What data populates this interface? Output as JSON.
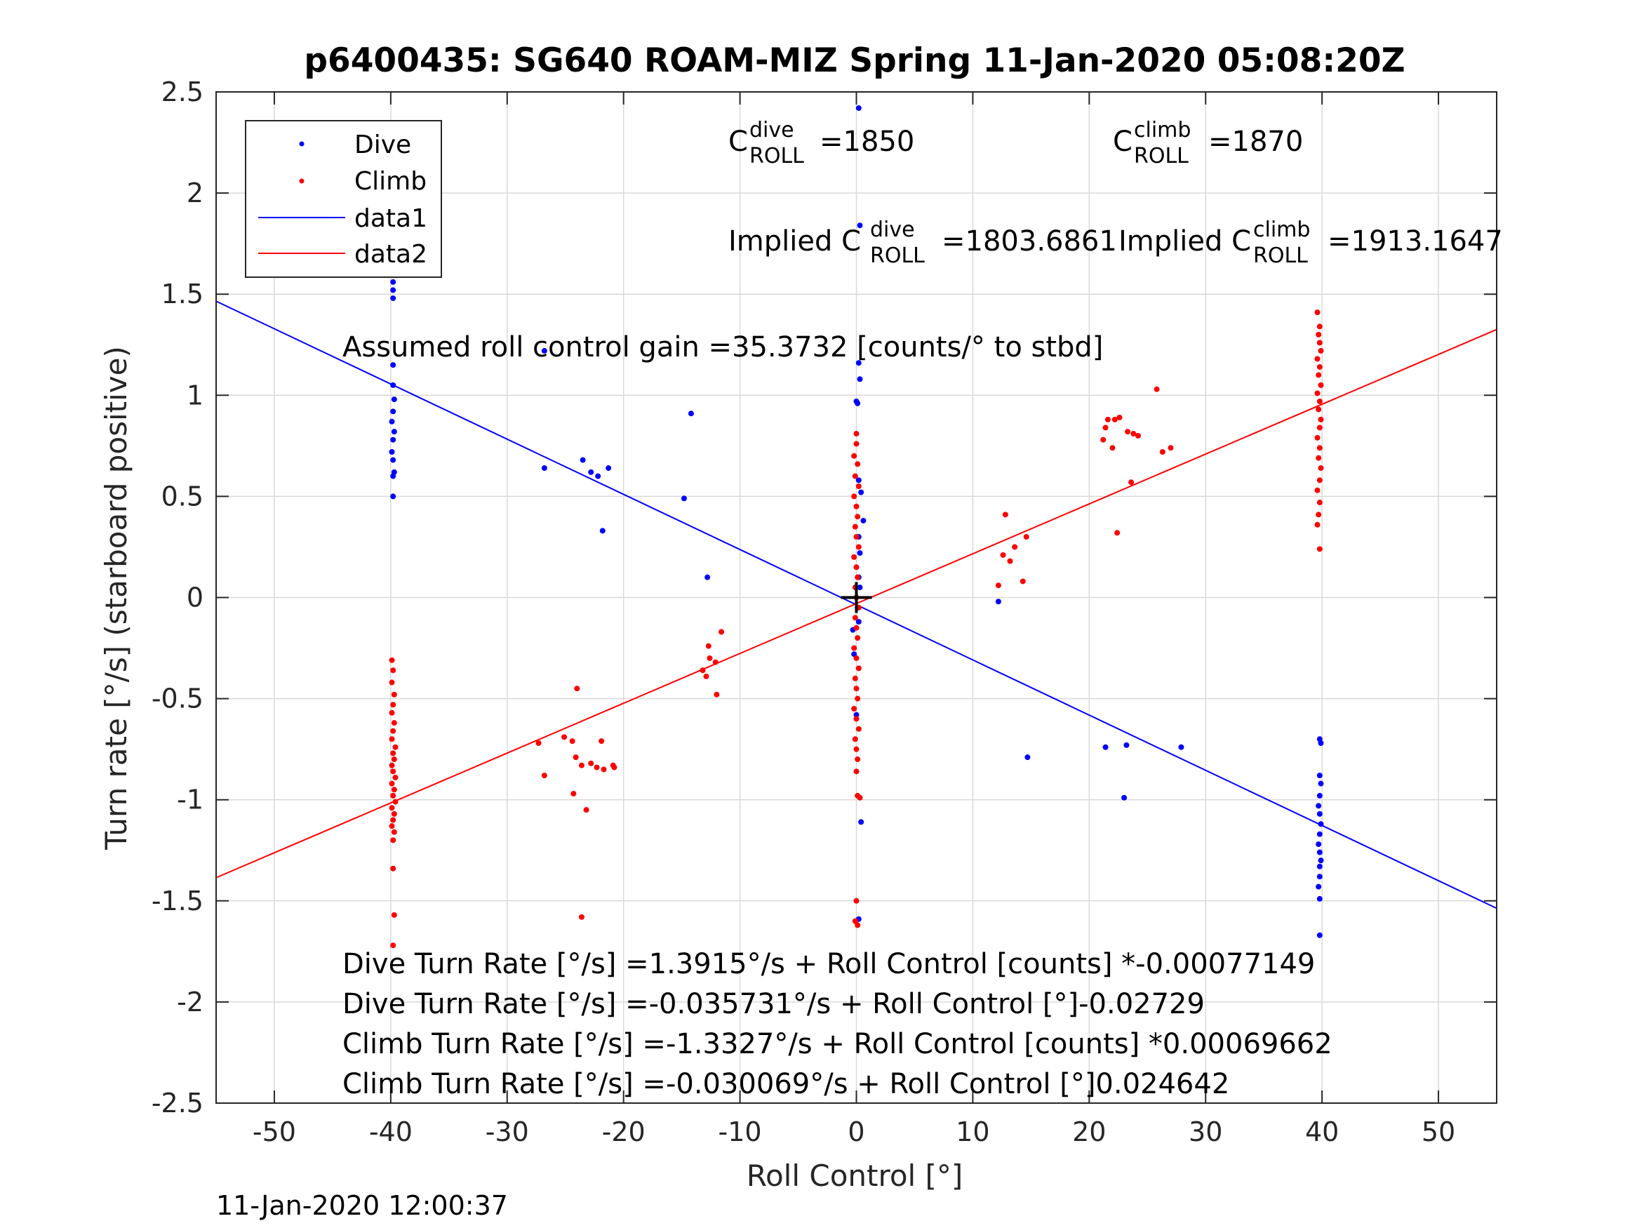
{
  "chart_data": {
    "type": "scatter",
    "title": "p6400435: SG640 ROAM-MIZ Spring 11-Jan-2020 05:08:20Z",
    "xlabel": "Roll Control [°]",
    "ylabel": "Turn rate [°/s] (starboard positive)",
    "xlim": [
      -55,
      55
    ],
    "ylim": [
      -2.5,
      2.5
    ],
    "xticks": [
      -50,
      -40,
      -30,
      -20,
      -10,
      0,
      10,
      20,
      30,
      40,
      50
    ],
    "xtick_labels": [
      "-50",
      "-40",
      "-30",
      "-20",
      "-10",
      "0",
      "10",
      "20",
      "30",
      "40",
      "50"
    ],
    "yticks": [
      2.5,
      2,
      1.5,
      1,
      0.5,
      0,
      -0.5,
      -1,
      -1.5,
      -2,
      -2.5
    ],
    "ytick_labels": [
      "2.5",
      "2",
      "1.5",
      "1",
      "0.5",
      "0",
      "-0.5",
      "-1",
      "-1.5",
      "-2",
      "-2.5"
    ],
    "grid": true,
    "legend_position": "top-left",
    "colors": {
      "dive": "#0000ff",
      "climb": "#ff0000",
      "center_marker": "#000000"
    },
    "legend": [
      {
        "label": "Dive",
        "kind": "marker",
        "color": "#0000ff"
      },
      {
        "label": "Climb",
        "kind": "marker",
        "color": "#ff0000"
      },
      {
        "label": "data1",
        "kind": "line",
        "color": "#0000ff"
      },
      {
        "label": "data2",
        "kind": "line",
        "color": "#ff0000"
      }
    ],
    "annotations": {
      "c_dive": {
        "base": "C",
        "sup": "dive",
        "sub": "ROLL",
        "value": "=1850"
      },
      "c_climb": {
        "base": "C",
        "sup": "climb",
        "sub": "ROLL",
        "value": "=1870"
      },
      "implied_dive": {
        "base": "Implied C",
        "sup": "dive",
        "sub": "ROLL",
        "value": "=1803.6861"
      },
      "implied_climb": {
        "base": "Implied C",
        "sup": "climb",
        "sub": "ROLL",
        "value": "=1913.1647"
      },
      "gain": "Assumed roll control gain =35.3732 [counts/° to stbd]",
      "eq1": "Dive Turn Rate [°/s] =1.3915°/s + Roll Control [counts] *-0.00077149",
      "eq2": "Dive Turn Rate [°/s] =-0.035731°/s + Roll Control [°]-0.02729",
      "eq3": "Climb Turn Rate [°/s] =-1.3327°/s + Roll Control [counts] *0.00069662",
      "eq4": "Climb Turn Rate [°/s] =-0.030069°/s + Roll Control [°]0.024642"
    },
    "footer_timestamp": "11-Jan-2020 12:00:37",
    "fit_lines": [
      {
        "name": "data1",
        "color": "#0000ff",
        "intercept": -0.035731,
        "slope": -0.02729
      },
      {
        "name": "data2",
        "color": "#ff0000",
        "intercept": -0.030069,
        "slope": 0.024642
      }
    ],
    "center_marker": {
      "x": 0,
      "y": 0
    },
    "series": [
      {
        "name": "Dive",
        "color": "#0000ff",
        "points": [
          [
            -39.8,
            1.66
          ],
          [
            -39.8,
            1.6
          ],
          [
            -39.8,
            1.56
          ],
          [
            -39.8,
            1.52
          ],
          [
            -39.8,
            1.48
          ],
          [
            -39.8,
            1.15
          ],
          [
            -39.8,
            1.05
          ],
          [
            -39.7,
            0.98
          ],
          [
            -39.8,
            0.92
          ],
          [
            -39.9,
            0.87
          ],
          [
            -39.7,
            0.82
          ],
          [
            -39.8,
            0.78
          ],
          [
            -39.9,
            0.72
          ],
          [
            -39.8,
            0.68
          ],
          [
            -39.7,
            0.62
          ],
          [
            -39.8,
            0.6
          ],
          [
            -39.8,
            0.5
          ],
          [
            -26.8,
            1.22
          ],
          [
            -26.8,
            0.64
          ],
          [
            -23.5,
            0.68
          ],
          [
            -22.2,
            0.6
          ],
          [
            -22.8,
            0.62
          ],
          [
            -21.8,
            0.33
          ],
          [
            -21.3,
            0.64
          ],
          [
            -14.8,
            0.49
          ],
          [
            -14.2,
            0.91
          ],
          [
            -12.8,
            0.1
          ],
          [
            0.2,
            2.42
          ],
          [
            0.3,
            1.84
          ],
          [
            0.2,
            1.16
          ],
          [
            0.3,
            1.08
          ],
          [
            0.0,
            0.97
          ],
          [
            0.1,
            0.96
          ],
          [
            0.2,
            0.58
          ],
          [
            0.4,
            0.52
          ],
          [
            0.6,
            0.38
          ],
          [
            0.2,
            0.3
          ],
          [
            0.3,
            0.22
          ],
          [
            0.2,
            0.1
          ],
          [
            0.3,
            0.05
          ],
          [
            0.1,
            -0.05
          ],
          [
            0.2,
            -0.12
          ],
          [
            -0.3,
            -0.16
          ],
          [
            -0.2,
            -0.28
          ],
          [
            0.0,
            -0.58
          ],
          [
            0.4,
            -1.11
          ],
          [
            0.2,
            -1.59
          ],
          [
            12.2,
            -0.02
          ],
          [
            14.7,
            -0.79
          ],
          [
            21.4,
            -0.74
          ],
          [
            23.2,
            -0.73
          ],
          [
            23.0,
            -0.99
          ],
          [
            27.9,
            -0.74
          ],
          [
            39.8,
            -0.7
          ],
          [
            39.9,
            -0.72
          ],
          [
            39.8,
            -0.88
          ],
          [
            39.9,
            -0.92
          ],
          [
            39.8,
            -0.98
          ],
          [
            39.7,
            -1.03
          ],
          [
            39.8,
            -1.07
          ],
          [
            39.9,
            -1.12
          ],
          [
            39.8,
            -1.17
          ],
          [
            39.7,
            -1.22
          ],
          [
            39.8,
            -1.26
          ],
          [
            39.9,
            -1.3
          ],
          [
            39.8,
            -1.33
          ],
          [
            39.8,
            -1.38
          ],
          [
            39.7,
            -1.43
          ],
          [
            39.8,
            -1.49
          ],
          [
            39.8,
            -1.67
          ]
        ]
      },
      {
        "name": "Climb",
        "color": "#ff0000",
        "points": [
          [
            -39.9,
            -0.31
          ],
          [
            -39.8,
            -0.36
          ],
          [
            -39.9,
            -0.42
          ],
          [
            -39.7,
            -0.48
          ],
          [
            -39.8,
            -0.53
          ],
          [
            -39.9,
            -0.57
          ],
          [
            -39.7,
            -0.62
          ],
          [
            -39.8,
            -0.66
          ],
          [
            -39.9,
            -0.7
          ],
          [
            -39.6,
            -0.74
          ],
          [
            -39.8,
            -0.77
          ],
          [
            -39.7,
            -0.8
          ],
          [
            -39.9,
            -0.83
          ],
          [
            -39.8,
            -0.86
          ],
          [
            -39.6,
            -0.89
          ],
          [
            -39.9,
            -0.92
          ],
          [
            -39.7,
            -0.95
          ],
          [
            -39.8,
            -0.98
          ],
          [
            -39.6,
            -1.01
          ],
          [
            -39.9,
            -1.04
          ],
          [
            -39.7,
            -1.07
          ],
          [
            -39.8,
            -1.1
          ],
          [
            -39.9,
            -1.13
          ],
          [
            -39.7,
            -1.16
          ],
          [
            -39.8,
            -1.2
          ],
          [
            -39.8,
            -1.34
          ],
          [
            -39.7,
            -1.57
          ],
          [
            -39.8,
            -1.72
          ],
          [
            -27.3,
            -0.72
          ],
          [
            -26.8,
            -0.88
          ],
          [
            -25.1,
            -0.69
          ],
          [
            -24.4,
            -0.71
          ],
          [
            -24.1,
            -0.79
          ],
          [
            -24.0,
            -0.45
          ],
          [
            -24.3,
            -0.97
          ],
          [
            -23.6,
            -0.83
          ],
          [
            -23.2,
            -1.05
          ],
          [
            -22.8,
            -0.82
          ],
          [
            -22.3,
            -0.84
          ],
          [
            -21.9,
            -0.71
          ],
          [
            -21.7,
            -0.85
          ],
          [
            -20.9,
            -0.83
          ],
          [
            -20.8,
            -0.84
          ],
          [
            -23.6,
            -1.58
          ],
          [
            -13.2,
            -0.36
          ],
          [
            -12.9,
            -0.39
          ],
          [
            -12.7,
            -0.24
          ],
          [
            -12.6,
            -0.3
          ],
          [
            -12.1,
            -0.32
          ],
          [
            -12.0,
            -0.48
          ],
          [
            -11.6,
            -0.17
          ],
          [
            0.0,
            0.81
          ],
          [
            0.0,
            0.76
          ],
          [
            -0.2,
            0.7
          ],
          [
            0.1,
            0.66
          ],
          [
            -0.1,
            0.6
          ],
          [
            0.2,
            0.55
          ],
          [
            -0.2,
            0.5
          ],
          [
            0.0,
            0.45
          ],
          [
            0.1,
            0.4
          ],
          [
            -0.1,
            0.35
          ],
          [
            0.0,
            0.3
          ],
          [
            0.2,
            0.25
          ],
          [
            -0.2,
            0.2
          ],
          [
            0.0,
            0.15
          ],
          [
            0.1,
            0.1
          ],
          [
            -0.1,
            0.05
          ],
          [
            0.0,
            0.0
          ],
          [
            0.2,
            -0.05
          ],
          [
            -0.1,
            -0.1
          ],
          [
            0.0,
            -0.15
          ],
          [
            0.1,
            -0.2
          ],
          [
            -0.2,
            -0.25
          ],
          [
            0.0,
            -0.3
          ],
          [
            0.2,
            -0.35
          ],
          [
            -0.1,
            -0.4
          ],
          [
            0.0,
            -0.45
          ],
          [
            0.1,
            -0.5
          ],
          [
            -0.2,
            -0.55
          ],
          [
            0.0,
            -0.6
          ],
          [
            0.2,
            -0.65
          ],
          [
            -0.1,
            -0.7
          ],
          [
            0.0,
            -0.75
          ],
          [
            0.1,
            -0.8
          ],
          [
            0.0,
            -0.86
          ],
          [
            0.1,
            -0.98
          ],
          [
            0.3,
            -0.99
          ],
          [
            0.0,
            -1.5
          ],
          [
            -0.1,
            -1.6
          ],
          [
            0.1,
            -1.62
          ],
          [
            12.2,
            0.06
          ],
          [
            12.6,
            0.21
          ],
          [
            12.8,
            0.41
          ],
          [
            13.2,
            0.18
          ],
          [
            13.6,
            0.25
          ],
          [
            14.3,
            0.08
          ],
          [
            14.6,
            0.3
          ],
          [
            21.2,
            0.78
          ],
          [
            21.4,
            0.84
          ],
          [
            21.6,
            0.88
          ],
          [
            22.0,
            0.74
          ],
          [
            22.2,
            0.88
          ],
          [
            22.6,
            0.89
          ],
          [
            22.4,
            0.32
          ],
          [
            23.3,
            0.82
          ],
          [
            23.6,
            0.57
          ],
          [
            23.8,
            0.81
          ],
          [
            24.2,
            0.8
          ],
          [
            25.8,
            1.03
          ],
          [
            26.3,
            0.72
          ],
          [
            27.0,
            0.74
          ],
          [
            39.6,
            1.41
          ],
          [
            39.8,
            1.34
          ],
          [
            39.7,
            1.3
          ],
          [
            39.8,
            1.26
          ],
          [
            39.9,
            1.22
          ],
          [
            39.6,
            1.18
          ],
          [
            39.8,
            1.14
          ],
          [
            39.7,
            1.1
          ],
          [
            39.9,
            1.05
          ],
          [
            39.6,
            1.01
          ],
          [
            39.8,
            0.97
          ],
          [
            39.7,
            0.93
          ],
          [
            39.9,
            0.88
          ],
          [
            39.8,
            0.84
          ],
          [
            39.6,
            0.79
          ],
          [
            39.8,
            0.74
          ],
          [
            39.7,
            0.69
          ],
          [
            39.9,
            0.64
          ],
          [
            39.8,
            0.58
          ],
          [
            39.6,
            0.53
          ],
          [
            39.8,
            0.47
          ],
          [
            39.7,
            0.41
          ],
          [
            39.6,
            0.36
          ],
          [
            39.8,
            0.24
          ]
        ]
      }
    ]
  }
}
